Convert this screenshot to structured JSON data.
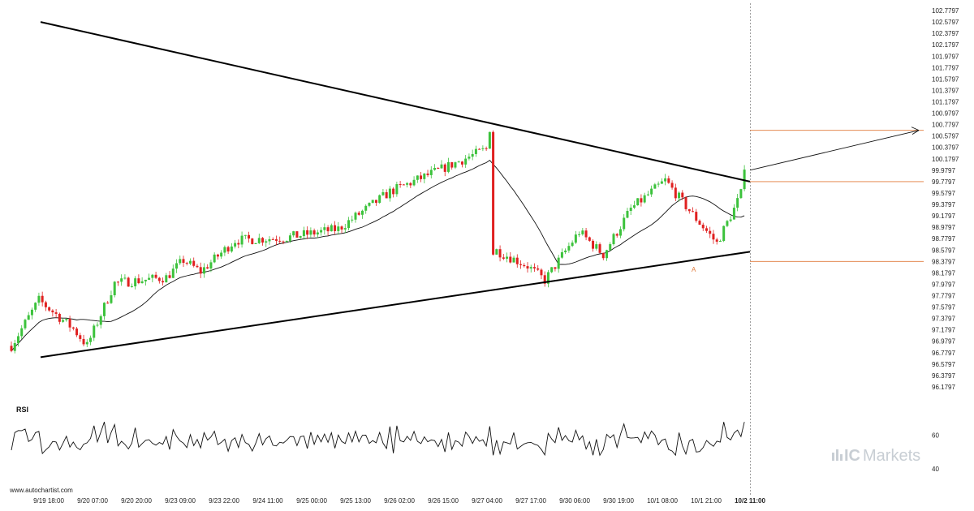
{
  "chart_data": {
    "type": "candlestick",
    "price_axis": {
      "ylim": [
        96.0797,
        102.8797
      ],
      "ticks": [
        "102.7797",
        "102.5797",
        "102.3797",
        "102.1797",
        "101.9797",
        "101.7797",
        "101.5797",
        "101.3797",
        "101.1797",
        "100.9797",
        "100.7797",
        "100.5797",
        "100.3797",
        "100.1797",
        "99.9797",
        "99.7797",
        "99.5797",
        "99.3797",
        "99.1797",
        "98.9797",
        "98.7797",
        "98.5797",
        "98.3797",
        "98.1797",
        "97.9797",
        "97.7797",
        "97.5797",
        "97.3797",
        "97.1797",
        "96.9797",
        "96.7797",
        "96.5797",
        "96.3797",
        "96.1797"
      ]
    },
    "x_ticks": [
      "9/19 18:00",
      "9/20 07:00",
      "9/20 20:00",
      "9/23 09:00",
      "9/23 22:00",
      "9/24 11:00",
      "9/25 00:00",
      "9/25 13:00",
      "9/26 02:00",
      "9/26 15:00",
      "9/27 04:00",
      "9/27 17:00",
      "9/30 06:00",
      "9/30 19:00",
      "10/1 08:00",
      "10/1 21:00",
      "10/2 11:00"
    ],
    "x_tick_bold": "10/2 11:00",
    "pattern": {
      "type": "triangle",
      "upper_line": [
        [
          1.0,
          102.5797
        ],
        [
          214.0,
          99.7797
        ]
      ],
      "lower_line": [
        [
          1.0,
          96.7
        ],
        [
          214.0,
          98.55
        ]
      ],
      "point_label": "A",
      "point_label_at": [
        196,
        98.24
      ]
    },
    "levels": [
      {
        "value": 100.6797,
        "color": "#e07a3a"
      },
      {
        "value": 99.7797,
        "color": "#e07a3a"
      },
      {
        "value": 98.3797,
        "color": "#e07a3a"
      }
    ],
    "forecast_arrow": {
      "from": [
        214.0,
        99.9797
      ],
      "to": [
        262.0,
        100.6797
      ]
    },
    "rsi": {
      "label": "RSI",
      "ticks": [
        "60",
        "40"
      ],
      "ylim": [
        36,
        72
      ]
    },
    "series": [
      {
        "name": "price",
        "seed": 7,
        "count": 214
      },
      {
        "name": "moving-average",
        "period": 20
      }
    ]
  },
  "footer": {
    "site": "www.autochartist.com",
    "brand_ic": "IC",
    "brand_name": "Markets"
  },
  "colors": {
    "up": "#3cc23c",
    "down": "#e02020",
    "line": "#000000",
    "level": "#e07a3a",
    "grid_dash": "#888888"
  }
}
